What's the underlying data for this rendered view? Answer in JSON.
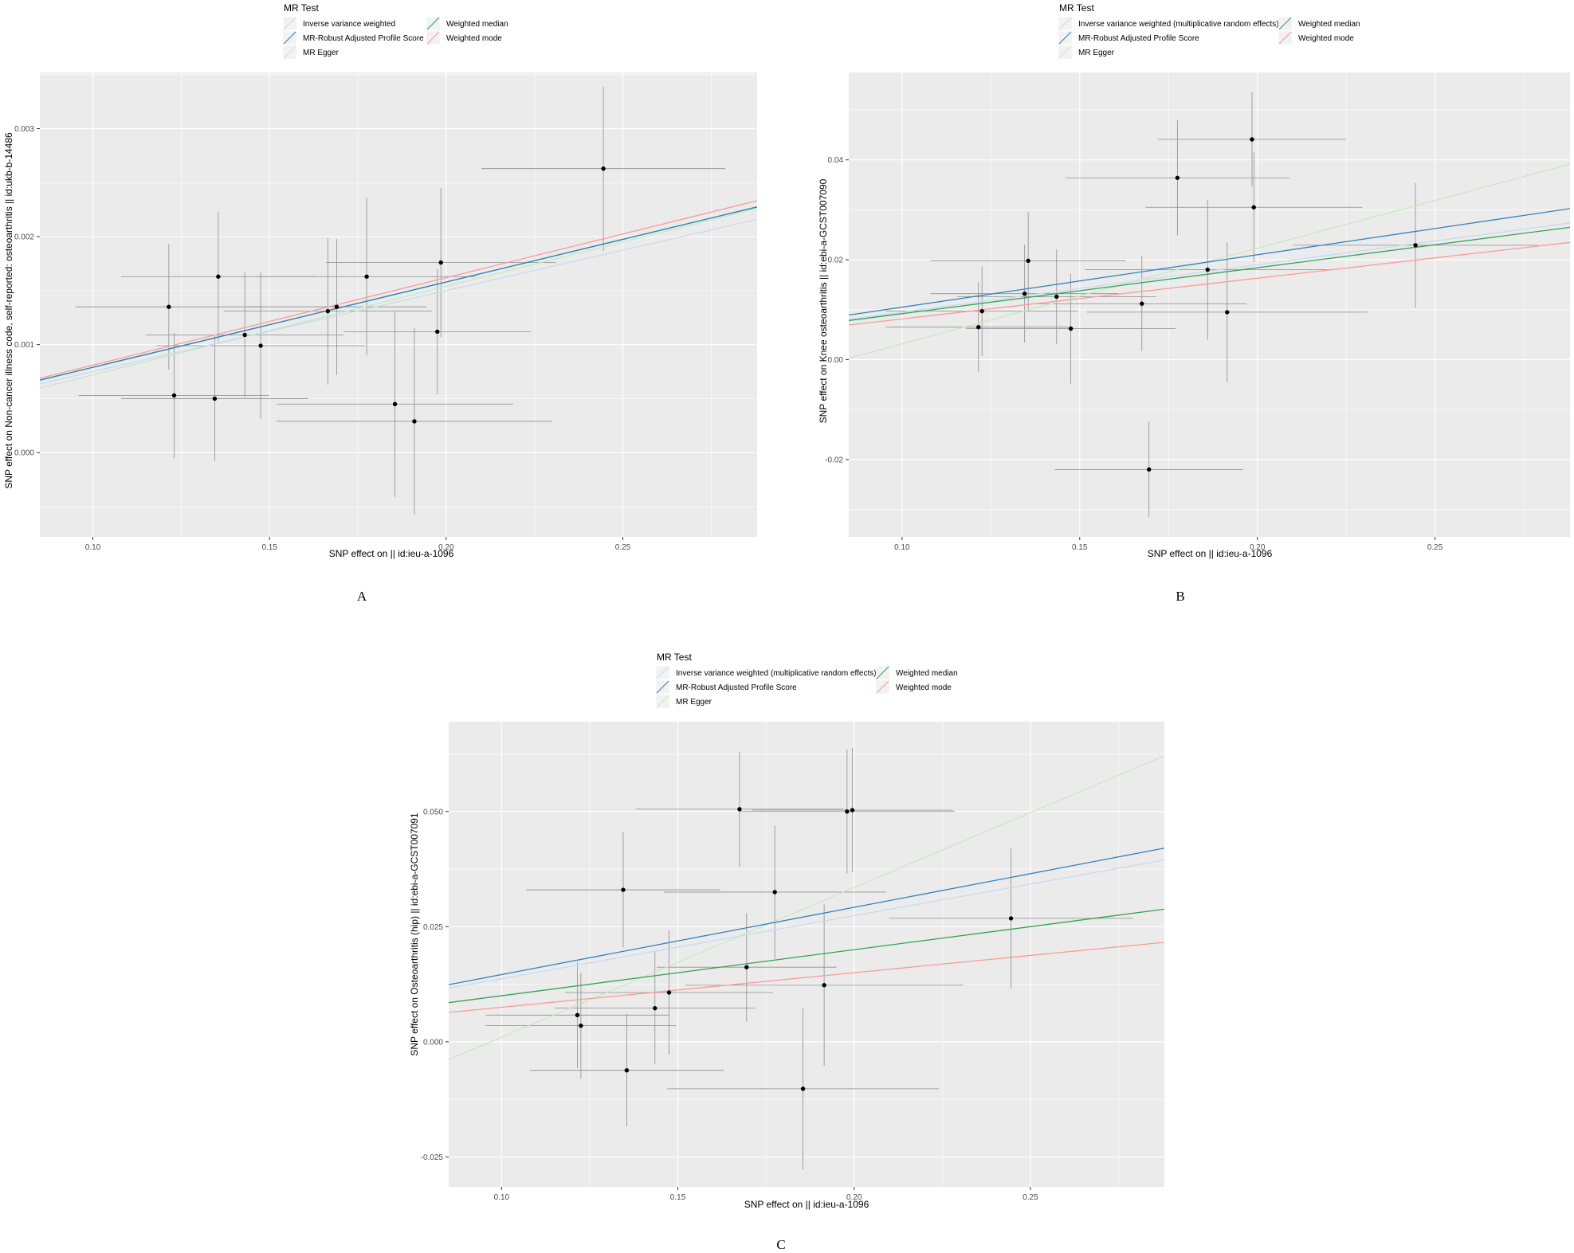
{
  "legend_title": "MR Test",
  "colors": {
    "ivw": "#C6DBEF",
    "rap": "#3182BD",
    "egger": "#C7E9C0",
    "median": "#31A354",
    "mode": "#FB9A99",
    "panel_bg": "#EBEBEB",
    "grid": "#FFFFFF",
    "point": "#000000",
    "errorbar": "#8C8C8C"
  },
  "chart_data": [
    {
      "type": "scatter",
      "panel_label": "A",
      "title": "",
      "xlabel": "SNP effect on  || id:ieu-a-1096",
      "ylabel": "SNP effect on Non-cancer illness code, self-reported: osteoarthritis || id:ukb-b-14486",
      "xlim": [
        0.085,
        0.288
      ],
      "ylim": [
        -0.00078,
        0.00352
      ],
      "xticks": [
        0.1,
        0.15,
        0.2,
        0.25
      ],
      "xtick_labels": [
        "0.10",
        "0.15",
        "0.20",
        "0.25"
      ],
      "yticks": [
        0.0,
        0.001,
        0.002,
        0.003
      ],
      "ytick_labels": [
        "0.000",
        "0.001",
        "0.002",
        "0.003"
      ],
      "legend_labels": [
        "Inverse variance weighted",
        "MR-Robust Adjusted Profile Score",
        "MR Egger",
        "Weighted median",
        "Weighted mode"
      ],
      "points": [
        {
          "x": 0.1215,
          "y": 0.00135,
          "xerr": 0.0265,
          "yerr": 0.00058
        },
        {
          "x": 0.123,
          "y": 0.00053,
          "xerr": 0.027,
          "yerr": 0.00058
        },
        {
          "x": 0.1345,
          "y": 0.0005,
          "xerr": 0.0265,
          "yerr": 0.00058
        },
        {
          "x": 0.1355,
          "y": 0.00163,
          "xerr": 0.0275,
          "yerr": 0.0006
        },
        {
          "x": 0.143,
          "y": 0.00109,
          "xerr": 0.028,
          "yerr": 0.00058
        },
        {
          "x": 0.1475,
          "y": 0.00099,
          "xerr": 0.0295,
          "yerr": 0.00068
        },
        {
          "x": 0.1665,
          "y": 0.00131,
          "xerr": 0.0295,
          "yerr": 0.00068
        },
        {
          "x": 0.169,
          "y": 0.00135,
          "xerr": 0.0255,
          "yerr": 0.00063
        },
        {
          "x": 0.1775,
          "y": 0.00163,
          "xerr": 0.031,
          "yerr": 0.00073
        },
        {
          "x": 0.1855,
          "y": 0.00045,
          "xerr": 0.0335,
          "yerr": 0.00086
        },
        {
          "x": 0.191,
          "y": 0.00029,
          "xerr": 0.039,
          "yerr": 0.00086
        },
        {
          "x": 0.1975,
          "y": 0.00112,
          "xerr": 0.0265,
          "yerr": 0.00058
        },
        {
          "x": 0.1985,
          "y": 0.00176,
          "xerr": 0.0325,
          "yerr": 0.00069
        },
        {
          "x": 0.2445,
          "y": 0.00263,
          "xerr": 0.0345,
          "yerr": 0.00076
        }
      ],
      "lines": [
        {
          "name": "Inverse variance weighted",
          "slope": 0.0075,
          "intercept": 0.0
        },
        {
          "name": "MR-Robust Adjusted Profile Score",
          "slope": 0.0079,
          "intercept": 0.0
        },
        {
          "name": "MR Egger",
          "slope": 0.0082,
          "intercept": -0.0001
        },
        {
          "name": "Weighted median",
          "slope": 0.0079,
          "intercept": 0.0
        },
        {
          "name": "Weighted mode",
          "slope": 0.0081,
          "intercept": 0.0
        }
      ]
    },
    {
      "type": "scatter",
      "panel_label": "B",
      "title": "",
      "xlabel": "SNP effect on  || id:ieu-a-1096",
      "ylabel": "SNP effect on Knee osteoarthritis || id:ebi-a-GCST007090",
      "xlim": [
        0.085,
        0.288
      ],
      "ylim": [
        -0.0355,
        0.0575
      ],
      "xticks": [
        0.1,
        0.15,
        0.2,
        0.25
      ],
      "xtick_labels": [
        "0.10",
        "0.15",
        "0.20",
        "0.25"
      ],
      "yticks": [
        -0.02,
        0.0,
        0.02,
        0.04
      ],
      "ytick_labels": [
        "-0.02",
        "0.00",
        "0.02",
        "0.04"
      ],
      "legend_labels": [
        "Inverse variance weighted (multiplicative random effects)",
        "MR-Robust Adjusted Profile Score",
        "MR Egger",
        "Weighted median",
        "Weighted mode"
      ],
      "points": [
        {
          "x": 0.1215,
          "y": 0.0065,
          "xerr": 0.026,
          "yerr": 0.009
        },
        {
          "x": 0.1225,
          "y": 0.0097,
          "xerr": 0.027,
          "yerr": 0.009
        },
        {
          "x": 0.1345,
          "y": 0.0132,
          "xerr": 0.0265,
          "yerr": 0.0098
        },
        {
          "x": 0.1355,
          "y": 0.0198,
          "xerr": 0.0275,
          "yerr": 0.0098
        },
        {
          "x": 0.1435,
          "y": 0.0126,
          "xerr": 0.028,
          "yerr": 0.0095
        },
        {
          "x": 0.1475,
          "y": 0.0062,
          "xerr": 0.0295,
          "yerr": 0.011
        },
        {
          "x": 0.1675,
          "y": 0.0112,
          "xerr": 0.0295,
          "yerr": 0.0095
        },
        {
          "x": 0.1695,
          "y": -0.022,
          "xerr": 0.0265,
          "yerr": 0.0095
        },
        {
          "x": 0.1775,
          "y": 0.0364,
          "xerr": 0.0315,
          "yerr": 0.0115
        },
        {
          "x": 0.186,
          "y": 0.018,
          "xerr": 0.0345,
          "yerr": 0.014
        },
        {
          "x": 0.1915,
          "y": 0.0095,
          "xerr": 0.0395,
          "yerr": 0.014
        },
        {
          "x": 0.1985,
          "y": 0.0441,
          "xerr": 0.0265,
          "yerr": 0.0095
        },
        {
          "x": 0.199,
          "y": 0.0305,
          "xerr": 0.0305,
          "yerr": 0.011
        },
        {
          "x": 0.2445,
          "y": 0.0229,
          "xerr": 0.0345,
          "yerr": 0.0125
        }
      ],
      "lines": [
        {
          "name": "Inverse variance weighted (multiplicative random effects)",
          "slope": 0.095,
          "intercept": 0.0
        },
        {
          "name": "MR-Robust Adjusted Profile Score",
          "slope": 0.105,
          "intercept": 0.0
        },
        {
          "name": "MR Egger",
          "slope": 0.1915,
          "intercept": -0.016
        },
        {
          "name": "Weighted median",
          "slope": 0.092,
          "intercept": 0.0
        },
        {
          "name": "Weighted mode",
          "slope": 0.0815,
          "intercept": 0.0
        }
      ]
    },
    {
      "type": "scatter",
      "panel_label": "C",
      "title": "",
      "xlabel": "SNP effect on  || id:ieu-a-1096",
      "ylabel": "SNP effect on Osteoarthritis (hip) || id:ebi-a-GCST007091",
      "xlim": [
        0.085,
        0.288
      ],
      "ylim": [
        -0.0315,
        0.0695
      ],
      "xticks": [
        0.1,
        0.15,
        0.2,
        0.25
      ],
      "xtick_labels": [
        "0.10",
        "0.15",
        "0.20",
        "0.25"
      ],
      "yticks": [
        -0.025,
        0.0,
        0.025,
        0.05
      ],
      "ytick_labels": [
        "-0.025",
        "0.000",
        "0.025",
        "0.050"
      ],
      "legend_labels": [
        "Inverse variance weighted (multiplicative random effects)",
        "MR-Robust Adjusted Profile Score",
        "MR Egger",
        "Weighted median",
        "Weighted mode"
      ],
      "points": [
        {
          "x": 0.1215,
          "y": 0.0058,
          "xerr": 0.026,
          "yerr": 0.0115
        },
        {
          "x": 0.1225,
          "y": 0.0035,
          "xerr": 0.027,
          "yerr": 0.0115
        },
        {
          "x": 0.1345,
          "y": 0.033,
          "xerr": 0.0275,
          "yerr": 0.0125
        },
        {
          "x": 0.1355,
          "y": -0.0062,
          "xerr": 0.0275,
          "yerr": 0.0122
        },
        {
          "x": 0.1435,
          "y": 0.0073,
          "xerr": 0.0285,
          "yerr": 0.0122
        },
        {
          "x": 0.1475,
          "y": 0.0107,
          "xerr": 0.0295,
          "yerr": 0.0135
        },
        {
          "x": 0.1675,
          "y": 0.0505,
          "xerr": 0.0295,
          "yerr": 0.0125
        },
        {
          "x": 0.1695,
          "y": 0.0162,
          "xerr": 0.0255,
          "yerr": 0.0118
        },
        {
          "x": 0.1775,
          "y": 0.0325,
          "xerr": 0.0315,
          "yerr": 0.0145
        },
        {
          "x": 0.1855,
          "y": -0.0102,
          "xerr": 0.0385,
          "yerr": 0.0175
        },
        {
          "x": 0.1915,
          "y": 0.0123,
          "xerr": 0.0395,
          "yerr": 0.0175
        },
        {
          "x": 0.198,
          "y": 0.05,
          "xerr": 0.0305,
          "yerr": 0.0135
        },
        {
          "x": 0.1995,
          "y": 0.0503,
          "xerr": 0.0285,
          "yerr": 0.0135
        },
        {
          "x": 0.2445,
          "y": 0.0268,
          "xerr": 0.0345,
          "yerr": 0.0152
        }
      ],
      "lines": [
        {
          "name": "Inverse variance weighted (multiplicative random effects)",
          "slope": 0.137,
          "intercept": 0.0
        },
        {
          "name": "MR-Robust Adjusted Profile Score",
          "slope": 0.146,
          "intercept": 0.0
        },
        {
          "name": "MR Egger",
          "slope": 0.325,
          "intercept": -0.0315
        },
        {
          "name": "Weighted median",
          "slope": 0.1,
          "intercept": 0.0
        },
        {
          "name": "Weighted mode",
          "slope": 0.075,
          "intercept": 0.0
        }
      ]
    }
  ]
}
